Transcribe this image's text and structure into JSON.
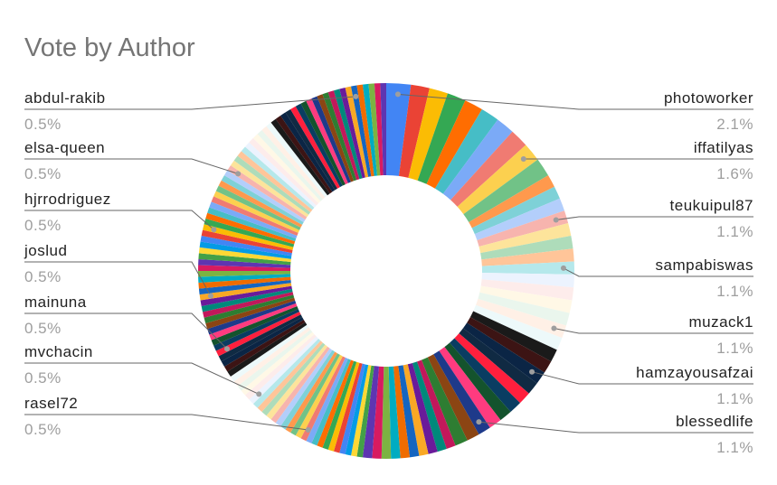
{
  "chart_data": {
    "type": "donut",
    "title": "Vote by Author",
    "categories": [
      "photoworker",
      null,
      null,
      null,
      null,
      null,
      null,
      null,
      "iffatilyas",
      null,
      null,
      null,
      null,
      "teukuipul87",
      null,
      null,
      null,
      "sampabiswas",
      null,
      null,
      null,
      null,
      "muzack1",
      null,
      null,
      null,
      "hamzayousafzai",
      null,
      null,
      null,
      null,
      null,
      "blessedlife",
      null,
      null,
      null,
      null,
      null,
      null,
      null,
      null,
      null,
      null,
      null,
      null,
      null,
      null,
      null,
      null,
      null,
      null,
      null,
      null,
      null,
      null,
      "rasel72",
      null,
      null,
      null,
      null,
      null,
      null,
      null,
      null,
      null,
      null,
      "mvchacin",
      null,
      null,
      null,
      null,
      null,
      null,
      null,
      null,
      null,
      "mainuna",
      null,
      null,
      null,
      null,
      null,
      null,
      null,
      null,
      null,
      "joslud",
      null,
      null,
      null,
      null,
      null,
      null,
      null,
      null,
      null,
      null,
      null,
      "hjrrodriguez",
      null,
      null,
      null,
      null,
      null,
      null,
      null,
      null,
      null,
      null,
      "elsa-queen",
      null,
      null,
      null,
      null,
      null,
      null,
      null,
      null,
      null,
      null,
      null,
      null,
      null,
      null,
      null,
      null,
      null,
      null,
      null,
      null,
      null,
      null,
      null,
      null,
      null,
      "abdul-rakib",
      null,
      null,
      null,
      null,
      null
    ],
    "values": [
      2.1,
      1.6,
      1.6,
      1.6,
      1.6,
      1.6,
      1.6,
      1.6,
      1.6,
      1.6,
      1.1,
      1.1,
      1.1,
      1.1,
      1.1,
      1.1,
      1.1,
      1.1,
      1.1,
      1.1,
      1.1,
      1.1,
      1.1,
      1.1,
      1.1,
      1.1,
      1.1,
      1.1,
      1.1,
      1.1,
      1.1,
      1.1,
      1.1,
      1.1,
      1.1,
      0.8,
      0.8,
      0.8,
      0.8,
      0.8,
      0.8,
      0.8,
      0.8,
      0.8,
      0.8,
      0.5,
      0.5,
      0.5,
      0.5,
      0.5,
      0.5,
      0.5,
      0.5,
      0.5,
      0.5,
      0.5,
      0.5,
      0.5,
      0.5,
      0.5,
      0.5,
      0.5,
      0.5,
      0.5,
      0.5,
      0.5,
      0.5,
      0.5,
      0.5,
      0.5,
      0.5,
      0.5,
      0.5,
      0.5,
      0.5,
      0.5,
      0.5,
      0.5,
      0.5,
      0.5,
      0.5,
      0.5,
      0.5,
      0.5,
      0.5,
      0.5,
      0.5,
      0.5,
      0.5,
      0.5,
      0.5,
      0.5,
      0.5,
      0.5,
      0.5,
      0.5,
      0.5,
      0.5,
      0.5,
      0.5,
      0.5,
      0.5,
      0.5,
      0.5,
      0.5,
      0.5,
      0.5,
      0.5,
      0.5,
      0.5,
      0.5,
      0.5,
      0.5,
      0.5,
      0.5,
      0.5,
      0.5,
      0.5,
      0.5,
      0.5,
      0.5,
      0.5,
      0.5,
      0.5,
      0.5,
      0.5,
      0.5,
      0.5,
      0.5,
      0.5,
      0.5,
      0.5,
      0.5,
      0.5,
      0.5,
      0.5,
      0.5,
      0.5,
      0.5,
      0.5,
      0.5
    ],
    "value_labels": [
      "2.1%",
      null,
      null,
      null,
      null,
      null,
      null,
      null,
      "1.6%",
      null,
      null,
      null,
      null,
      "1.1%",
      null,
      null,
      null,
      "1.1%",
      null,
      null,
      null,
      null,
      "1.1%",
      null,
      null,
      null,
      "1.1%",
      null,
      null,
      null,
      null,
      null,
      "1.1%",
      null,
      null,
      null,
      null,
      null,
      null,
      null,
      null,
      null,
      null,
      null,
      null,
      null,
      null,
      null,
      null,
      null,
      null,
      null,
      null,
      null,
      null,
      "0.5%",
      null,
      null,
      null,
      null,
      null,
      null,
      null,
      null,
      null,
      null,
      "0.5%",
      null,
      null,
      null,
      null,
      null,
      null,
      null,
      null,
      null,
      "0.5%",
      null,
      null,
      null,
      null,
      null,
      null,
      null,
      null,
      null,
      "0.5%",
      null,
      null,
      null,
      null,
      null,
      null,
      null,
      null,
      null,
      null,
      null,
      "0.5%",
      null,
      null,
      null,
      null,
      null,
      null,
      null,
      null,
      null,
      null,
      "0.5%",
      null,
      null,
      null,
      null,
      null,
      null,
      null,
      null,
      null,
      null,
      null,
      null,
      null,
      null,
      null,
      null,
      null,
      null,
      null,
      null,
      null,
      null,
      null,
      null,
      null,
      "0.5%",
      null,
      null,
      null,
      null,
      null
    ],
    "colors": [
      "#4285f4",
      "#ea4335",
      "#fbbc04",
      "#34a853",
      "#ff6d01",
      "#46bdc6",
      "#7baaf7",
      "#f07b72",
      "#fcd04f",
      "#71c287",
      "#ff994d",
      "#7ed1d7",
      "#b3cefb",
      "#f7b4ae",
      "#fde49b",
      "#aedcba",
      "#ffc599",
      "#b5e8eb",
      "#ecf3fe",
      "#fdeceb",
      "#fff8e6",
      "#eaf6ed",
      "#fff0e6",
      "#edf9fa",
      "#1a1a1a",
      "#3c1414",
      "#0b2545",
      "#102a43",
      "#ff1f3d",
      "#0a3d62",
      "#14532d",
      "#ff3b7f",
      "#1e3a8a",
      "#8b4513",
      "#2e7d32",
      "#c2185b",
      "#00897b",
      "#6a1b9a",
      "#f9a825",
      "#1565c0",
      "#ef6c00",
      "#00acc1",
      "#7cb342",
      "#d81b60",
      "#5e35b1",
      "#43a047",
      "#fdd835",
      "#039be5"
    ]
  }
}
